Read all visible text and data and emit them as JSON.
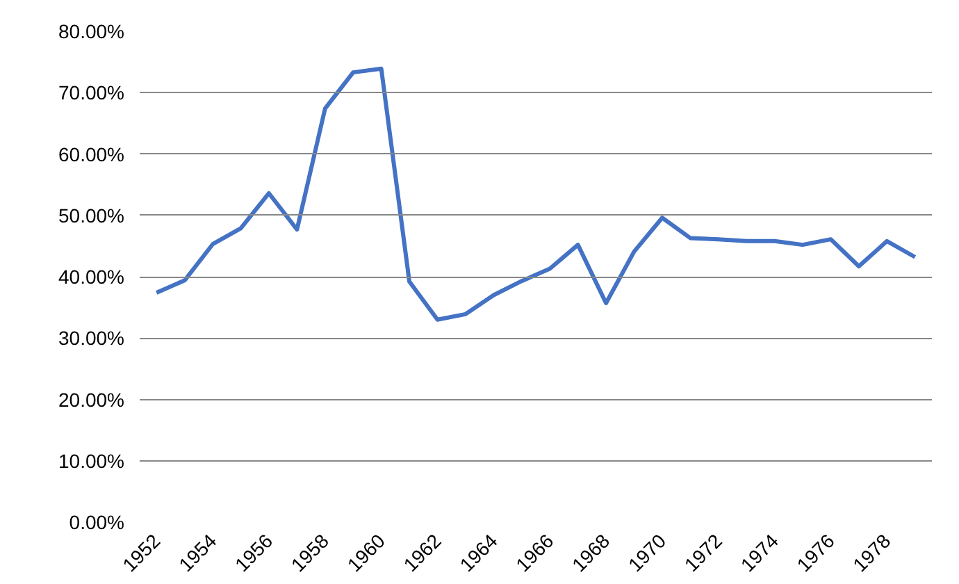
{
  "chart_data": {
    "type": "line",
    "categories": [
      "1952",
      null,
      "1954",
      null,
      "1956",
      null,
      "1958",
      null,
      "1960",
      null,
      "1962",
      null,
      "1964",
      null,
      "1966",
      null,
      "1968",
      null,
      "1970",
      null,
      "1972",
      null,
      "1974",
      null,
      "1976",
      null,
      "1978",
      null
    ],
    "series": [
      {
        "color": "#4472c4",
        "values": [
          37.4,
          39.4,
          45.3,
          47.9,
          53.6,
          47.7,
          67.4,
          73.3,
          73.9,
          39.2,
          33.0,
          33.9,
          37.0,
          39.3,
          41.3,
          45.2,
          35.7,
          44.1,
          49.6,
          46.3,
          46.1,
          45.8,
          45.8,
          45.2,
          46.1,
          41.7,
          45.8,
          43.2
        ]
      }
    ],
    "ylim": [
      0,
      80
    ],
    "yticks": [
      {
        "value": 0,
        "label": "0.00%"
      },
      {
        "value": 10,
        "label": "10.00%"
      },
      {
        "value": 20,
        "label": "20.00%"
      },
      {
        "value": 30,
        "label": "30.00%"
      },
      {
        "value": 40,
        "label": "40.00%"
      },
      {
        "value": 50,
        "label": "50.00%"
      },
      {
        "value": 60,
        "label": "60.00%"
      },
      {
        "value": 70,
        "label": "70.00%"
      },
      {
        "value": 80,
        "label": "80.00%"
      }
    ],
    "grid": "y",
    "marker": "none",
    "line_style": "solid"
  }
}
